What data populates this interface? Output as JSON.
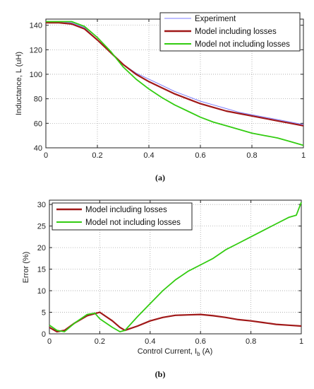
{
  "chart_data": [
    {
      "type": "line",
      "caption": "(a)",
      "xlabel": "",
      "ylabel": "Inductance, L (uH)",
      "xlim": [
        0,
        1
      ],
      "ylim": [
        40,
        145
      ],
      "xticks": [
        "0",
        "0.2",
        "0.4",
        "0.6",
        "0.8",
        "1"
      ],
      "yticks": [
        "40",
        "60",
        "80",
        "100",
        "120",
        "140"
      ],
      "grid": true,
      "legend_position": "top-right",
      "series": [
        {
          "name": "Experiment",
          "color": "#7b7bff",
          "x": [
            0,
            0.05,
            0.1,
            0.15,
            0.2,
            0.25,
            0.3,
            0.35,
            0.4,
            0.45,
            0.5,
            0.55,
            0.6,
            0.65,
            0.7,
            0.75,
            0.8,
            0.85,
            0.9,
            0.95,
            1.0
          ],
          "y": [
            143,
            143,
            142,
            138,
            128,
            118,
            108,
            101,
            96,
            91,
            86,
            82,
            78,
            75,
            72,
            69,
            67,
            65,
            63,
            61,
            59
          ]
        },
        {
          "name": "Model including losses",
          "color": "#a01818",
          "x": [
            0,
            0.05,
            0.1,
            0.15,
            0.2,
            0.25,
            0.3,
            0.35,
            0.4,
            0.45,
            0.5,
            0.55,
            0.6,
            0.65,
            0.7,
            0.75,
            0.8,
            0.85,
            0.9,
            0.95,
            1.0
          ],
          "y": [
            142,
            142,
            141,
            137,
            128,
            118,
            108,
            100,
            94,
            89,
            84,
            80,
            76,
            73,
            70,
            68,
            66,
            64,
            62,
            60,
            58
          ]
        },
        {
          "name": "Model not including losses",
          "color": "#33cc11",
          "x": [
            0,
            0.05,
            0.1,
            0.15,
            0.2,
            0.25,
            0.3,
            0.35,
            0.4,
            0.45,
            0.5,
            0.55,
            0.6,
            0.65,
            0.7,
            0.75,
            0.8,
            0.85,
            0.9,
            0.95,
            1.0
          ],
          "y": [
            143,
            143,
            143,
            139,
            130,
            119,
            106,
            96,
            88,
            81,
            75,
            70,
            65,
            61,
            58,
            55,
            52,
            50,
            48,
            45,
            42
          ]
        }
      ]
    },
    {
      "type": "line",
      "caption": "(b)",
      "xlabel": "Control Current, Ib (A)",
      "ylabel": "Error (%)",
      "xlim": [
        0,
        1
      ],
      "ylim": [
        0,
        31
      ],
      "xticks": [
        "0",
        "0.2",
        "0.4",
        "0.6",
        "0.8",
        "1"
      ],
      "yticks": [
        "0",
        "5",
        "10",
        "15",
        "20",
        "25",
        "30"
      ],
      "grid": true,
      "legend_position": "top-left",
      "series": [
        {
          "name": "Model including losses",
          "color": "#a01818",
          "x": [
            0,
            0.03,
            0.06,
            0.1,
            0.15,
            0.2,
            0.22,
            0.25,
            0.28,
            0.3,
            0.35,
            0.4,
            0.45,
            0.5,
            0.55,
            0.6,
            0.65,
            0.7,
            0.75,
            0.8,
            0.85,
            0.9,
            0.95,
            1.0
          ],
          "y": [
            1.5,
            0.5,
            0.8,
            2.5,
            4.2,
            5.0,
            4.2,
            3.0,
            1.5,
            0.8,
            1.8,
            3.0,
            3.8,
            4.3,
            4.4,
            4.5,
            4.2,
            3.8,
            3.3,
            3.0,
            2.6,
            2.2,
            2.0,
            1.8
          ]
        },
        {
          "name": "Model not including losses",
          "color": "#33cc11",
          "x": [
            0,
            0.03,
            0.06,
            0.1,
            0.15,
            0.18,
            0.2,
            0.25,
            0.28,
            0.3,
            0.35,
            0.4,
            0.45,
            0.5,
            0.55,
            0.6,
            0.65,
            0.7,
            0.75,
            0.8,
            0.85,
            0.9,
            0.95,
            0.98,
            1.0
          ],
          "y": [
            2.0,
            0.8,
            0.5,
            2.5,
            4.5,
            4.8,
            3.5,
            1.5,
            0.5,
            0.8,
            4.0,
            7.0,
            10.0,
            12.5,
            14.5,
            16.0,
            17.5,
            19.5,
            21.0,
            22.5,
            24.0,
            25.5,
            27.0,
            27.5,
            30.5
          ]
        }
      ]
    }
  ]
}
